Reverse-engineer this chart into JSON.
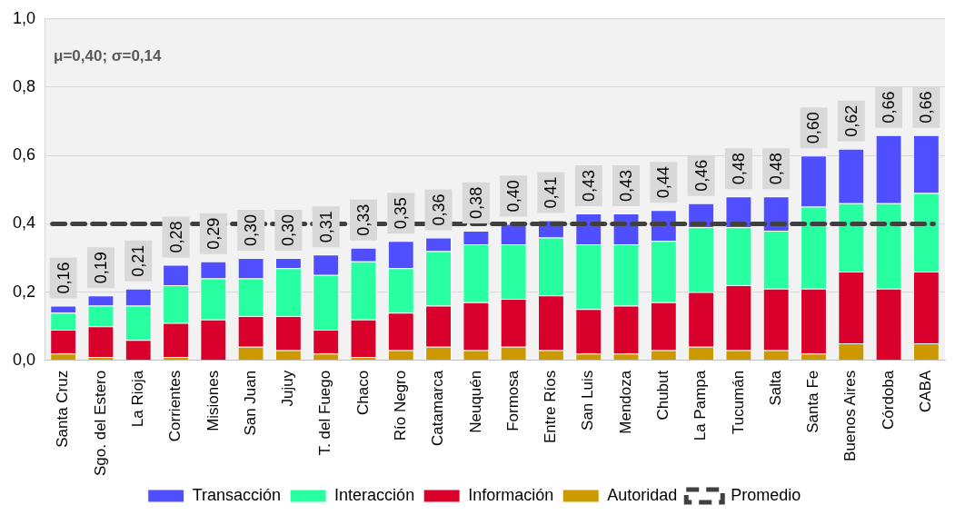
{
  "chart_data": {
    "type": "bar",
    "stacked": true,
    "categories": [
      "Santa Cruz",
      "Sgo. del Estero",
      "La Rioja",
      "Corrientes",
      "Misiones",
      "San Juan",
      "Jujuy",
      "T. del Fuego",
      "Chaco",
      "Río Negro",
      "Catamarca",
      "Neuquén",
      "Formosa",
      "Entre Ríos",
      "San Luis",
      "Mendoza",
      "Chubut",
      "La Pampa",
      "Tucumán",
      "Salta",
      "Santa Fe",
      "Buenos Aires",
      "Córdoba",
      "CABA"
    ],
    "series": [
      {
        "name": "Autoridad",
        "color": "#cc9900",
        "values": [
          0.02,
          0.01,
          0,
          0.01,
          0,
          0.04,
          0.03,
          0.02,
          0.01,
          0.03,
          0.04,
          0.03,
          0.04,
          0.03,
          0.02,
          0.02,
          0.03,
          0.04,
          0.03,
          0.03,
          0.02,
          0.05,
          0,
          0.05
        ]
      },
      {
        "name": "Información",
        "color": "#d9002b",
        "values": [
          0.07,
          0.09,
          0.06,
          0.1,
          0.12,
          0.09,
          0.1,
          0.07,
          0.11,
          0.11,
          0.12,
          0.14,
          0.14,
          0.16,
          0.13,
          0.14,
          0.14,
          0.16,
          0.19,
          0.18,
          0.19,
          0.21,
          0.21,
          0.21
        ]
      },
      {
        "name": "Interacción",
        "color": "#27ffa0",
        "values": [
          0.05,
          0.06,
          0.1,
          0.11,
          0.12,
          0.11,
          0.14,
          0.16,
          0.17,
          0.13,
          0.16,
          0.17,
          0.16,
          0.17,
          0.19,
          0.18,
          0.18,
          0.19,
          0.17,
          0.17,
          0.24,
          0.2,
          0.25,
          0.23
        ]
      },
      {
        "name": "Transacción",
        "color": "#4f4fff",
        "values": [
          0.02,
          0.03,
          0.05,
          0.06,
          0.05,
          0.06,
          0.03,
          0.06,
          0.04,
          0.08,
          0.04,
          0.04,
          0.06,
          0.05,
          0.09,
          0.09,
          0.09,
          0.07,
          0.09,
          0.1,
          0.15,
          0.16,
          0.2,
          0.17
        ]
      }
    ],
    "totals": [
      "0,16",
      "0,19",
      "0,21",
      "0,28",
      "0,29",
      "0,30",
      "0,30",
      "0,31",
      "0,33",
      "0,35",
      "0,36",
      "0,38",
      "0,40",
      "0,41",
      "0,43",
      "0,43",
      "0,44",
      "0,46",
      "0,48",
      "0,48",
      "0,60",
      "0,62",
      "0,66",
      "0,66"
    ],
    "ylim": [
      0,
      1
    ],
    "yticks": [
      {
        "value": 0,
        "label": "0,0"
      },
      {
        "value": 0.2,
        "label": "0,2"
      },
      {
        "value": 0.4,
        "label": "0,4"
      },
      {
        "value": 0.6,
        "label": "0,6"
      },
      {
        "value": 0.8,
        "label": "0,8"
      },
      {
        "value": 1,
        "label": "1,0"
      }
    ],
    "grid": "y",
    "legend": "bottom",
    "ref_lines": [
      {
        "axis": "y",
        "value": 0.4,
        "label": "Promedio",
        "color": "#404040",
        "line_style": "dashed"
      }
    ],
    "annotations": [
      "μ=0,40; σ=0,14"
    ]
  }
}
